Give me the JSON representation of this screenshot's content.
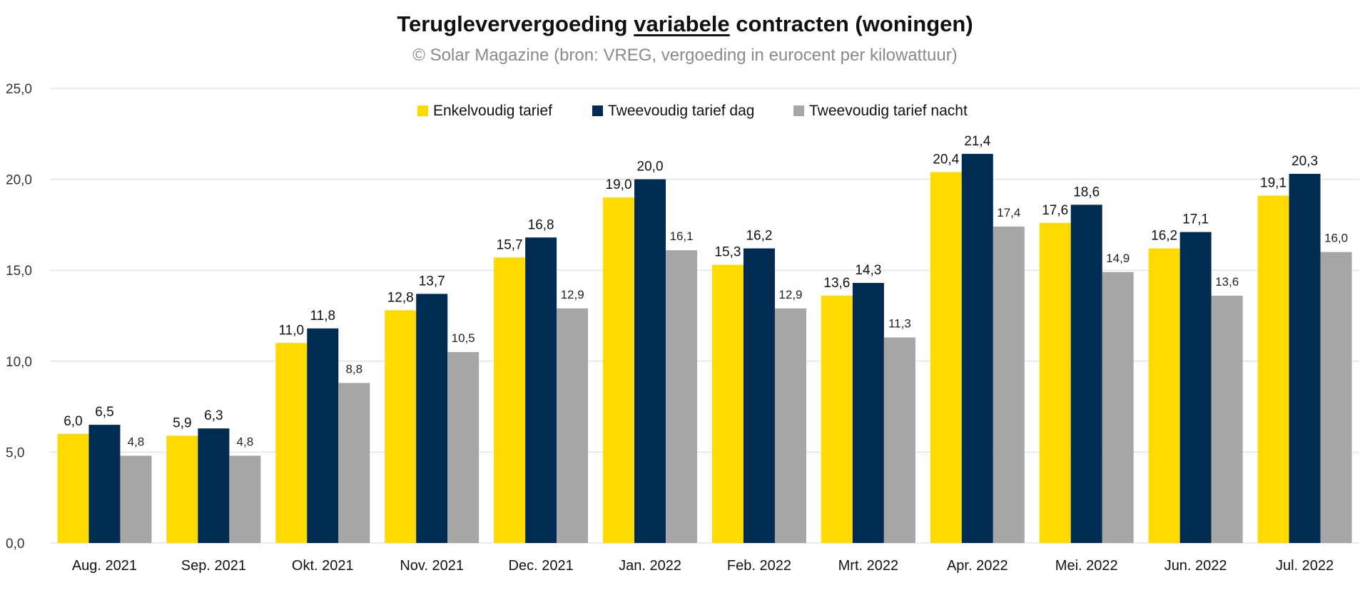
{
  "header": {
    "title_pre": "Terugleververgoeding ",
    "title_underlined": "variabele",
    "title_post": " contracten (woningen)",
    "subtitle": "© Solar Magazine (bron: VREG, vergoeding in eurocent per kilowattuur)"
  },
  "chart_data": {
    "type": "bar",
    "categories": [
      "Aug. 2021",
      "Sep. 2021",
      "Okt. 2021",
      "Nov. 2021",
      "Dec. 2021",
      "Jan. 2022",
      "Feb. 2022",
      "Mrt. 2022",
      "Apr. 2022",
      "Mei. 2022",
      "Jun. 2022",
      "Jul. 2022"
    ],
    "series": [
      {
        "name": "Enkelvoudig tarief",
        "color": "#FFDA00",
        "values": [
          6.0,
          5.9,
          11.0,
          12.8,
          15.7,
          19.0,
          15.3,
          13.6,
          20.4,
          17.6,
          16.2,
          19.1
        ],
        "labels": [
          "6,0",
          "5,9",
          "11,0",
          "12,8",
          "15,7",
          "19,0",
          "15,3",
          "13,6",
          "20,4",
          "17,6",
          "16,2",
          "19,1"
        ]
      },
      {
        "name": "Tweevoudig tarief dag",
        "color": "#002B52",
        "values": [
          6.5,
          6.3,
          11.8,
          13.7,
          16.8,
          20.0,
          16.2,
          14.3,
          21.4,
          18.6,
          17.1,
          20.3
        ],
        "labels": [
          "6,5",
          "6,3",
          "11,8",
          "13,7",
          "16,8",
          "20,0",
          "16,2",
          "14,3",
          "21,4",
          "18,6",
          "17,1",
          "20,3"
        ]
      },
      {
        "name": "Tweevoudig tarief nacht",
        "color": "#A6A6A6",
        "values": [
          4.8,
          4.8,
          8.8,
          10.5,
          12.9,
          16.1,
          12.9,
          11.3,
          17.4,
          14.9,
          13.6,
          16.0
        ],
        "labels": [
          "4,8",
          "4,8",
          "8,8",
          "10,5",
          "12,9",
          "16,1",
          "12,9",
          "11,3",
          "17,4",
          "14,9",
          "13,6",
          "16,0"
        ]
      }
    ],
    "ylim": [
      0,
      25
    ],
    "yticks": [
      0,
      5,
      10,
      15,
      20,
      25
    ],
    "ytick_labels": [
      "0,0",
      "5,0",
      "10,0",
      "15,0",
      "20,0",
      "25,0"
    ],
    "grid": true,
    "legend_position": "top-center",
    "gridline_color": "#D9D9D9"
  }
}
